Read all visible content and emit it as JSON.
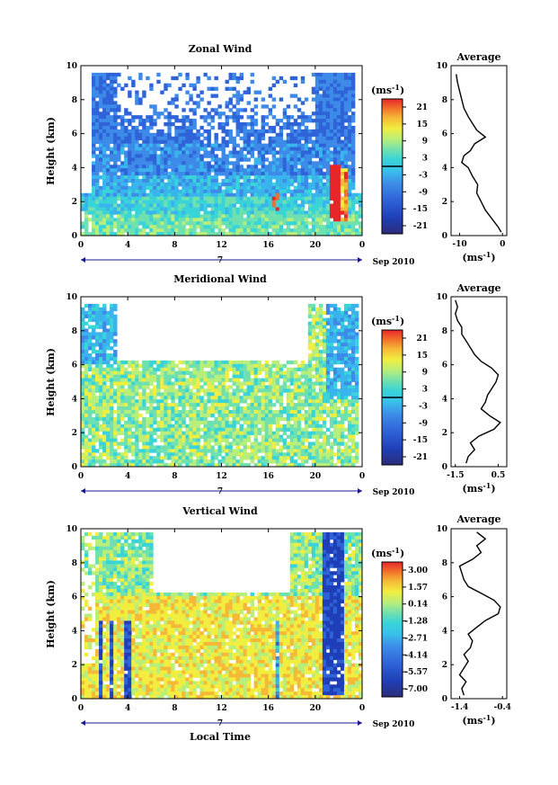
{
  "chart_data": [
    {
      "type": "heatmap",
      "title": "Zonal Wind",
      "xlabel": "",
      "ylabel": "Height (km)",
      "date_label": "Sep 2010",
      "day_label": "7",
      "x_ticks": [
        "0",
        "4",
        "8",
        "12",
        "16",
        "20",
        "0"
      ],
      "y_ticks": [
        "0",
        "2",
        "4",
        "6",
        "8",
        "10"
      ],
      "xlim": [
        0,
        24
      ],
      "ylim": [
        0,
        10
      ],
      "colorbar": {
        "unit": "(ms",
        "unit_exp": "-1",
        "unit_close": ")",
        "tick_labels": [
          "21",
          "15",
          "9",
          "3",
          "-3",
          "-9",
          "-15",
          "-21"
        ],
        "highlight_level": "0"
      },
      "profile": {
        "title": "Average",
        "xlabel": "(ms",
        "xlabel_exp": "-1",
        "xlabel_close": ")",
        "x_ticks": [
          "-10",
          "0"
        ],
        "y_ticks": [
          "0",
          "2",
          "4",
          "6",
          "8",
          "10"
        ],
        "xlim": [
          -12,
          1
        ],
        "height": [
          0.2,
          0.5,
          1.0,
          1.5,
          2.0,
          2.5,
          3.0,
          3.5,
          4.0,
          4.3,
          4.7,
          5.0,
          5.4,
          5.8,
          6.2,
          6.6,
          7.0,
          7.5,
          8.0,
          8.5,
          9.0,
          9.5
        ],
        "values": [
          -0.3,
          -1.0,
          -2.5,
          -4.0,
          -5.0,
          -6.0,
          -5.8,
          -7.0,
          -8.0,
          -9.5,
          -9.0,
          -7.5,
          -6.5,
          -4.0,
          -6.0,
          -7.0,
          -8.0,
          -9.0,
          -9.5,
          -10.0,
          -10.5,
          -10.8
        ]
      }
    },
    {
      "type": "heatmap",
      "title": "Meridional Wind",
      "xlabel": "",
      "ylabel": "Height (km)",
      "date_label": "Sep 2010",
      "day_label": "7",
      "x_ticks": [
        "0",
        "4",
        "8",
        "12",
        "16",
        "20",
        "0"
      ],
      "y_ticks": [
        "0",
        "2",
        "4",
        "6",
        "8",
        "10"
      ],
      "xlim": [
        0,
        24
      ],
      "ylim": [
        0,
        10
      ],
      "colorbar": {
        "unit": "(ms",
        "unit_exp": "-1",
        "unit_close": ")",
        "tick_labels": [
          "21",
          "15",
          "9",
          "3",
          "-3",
          "-9",
          "-15",
          "-21"
        ],
        "highlight_level": "0"
      },
      "profile": {
        "title": "Average",
        "xlabel": "(ms",
        "xlabel_exp": "-1",
        "xlabel_close": ")",
        "x_ticks": [
          "-1.5",
          "0.5"
        ],
        "y_ticks": [
          "0",
          "2",
          "4",
          "6",
          "8",
          "10"
        ],
        "xlim": [
          -1.7,
          0.9
        ],
        "height": [
          0.2,
          0.6,
          1.0,
          1.4,
          1.8,
          2.2,
          2.6,
          3.0,
          3.4,
          3.8,
          4.2,
          4.6,
          5.0,
          5.4,
          5.8,
          6.2,
          6.6,
          7.0,
          7.4,
          7.8,
          8.2,
          8.6,
          9.0,
          9.4,
          9.8
        ],
        "values": [
          -1.0,
          -0.9,
          -0.6,
          -0.8,
          -0.4,
          0.3,
          0.6,
          0.1,
          -0.3,
          -0.1,
          0.0,
          0.2,
          0.4,
          0.5,
          0.2,
          -0.3,
          -0.6,
          -0.8,
          -1.0,
          -1.2,
          -1.2,
          -1.4,
          -1.5,
          -1.4,
          -1.5
        ]
      }
    },
    {
      "type": "heatmap",
      "title": "Vertical Wind",
      "xlabel": "Local Time",
      "ylabel": "Height (km)",
      "date_label": "Sep 2010",
      "day_label": "7",
      "x_ticks": [
        "0",
        "4",
        "8",
        "12",
        "16",
        "20",
        "0"
      ],
      "y_ticks": [
        "0",
        "2",
        "4",
        "6",
        "8",
        "10"
      ],
      "xlim": [
        0,
        24
      ],
      "ylim": [
        0,
        10
      ],
      "colorbar": {
        "unit": "(ms",
        "unit_exp": "-1",
        "unit_close": ")",
        "tick_labels": [
          "3.00",
          "1.57",
          "0.14",
          "-1.28",
          "-2.71",
          "-4.14",
          "-5.57",
          "-7.00"
        ],
        "highlight_level": ""
      },
      "profile": {
        "title": "Average",
        "xlabel": "(ms",
        "xlabel_exp": "-1",
        "xlabel_close": ")",
        "x_ticks": [
          "-1.4",
          "-0.4"
        ],
        "y_ticks": [
          "0",
          "2",
          "4",
          "6",
          "8",
          "10"
        ],
        "xlim": [
          -1.6,
          -0.3
        ],
        "height": [
          0.2,
          0.6,
          1.0,
          1.4,
          1.8,
          2.2,
          2.6,
          3.0,
          3.4,
          3.8,
          4.2,
          4.6,
          5.0,
          5.4,
          5.8,
          6.2,
          6.6,
          7.0,
          7.4,
          7.8,
          8.2,
          8.6,
          9.0,
          9.4,
          9.8
        ],
        "values": [
          -1.3,
          -1.35,
          -1.25,
          -1.4,
          -1.3,
          -1.2,
          -1.3,
          -1.15,
          -1.1,
          -1.2,
          -1.0,
          -0.8,
          -0.5,
          -0.45,
          -0.6,
          -0.9,
          -1.2,
          -1.3,
          -1.35,
          -1.4,
          -1.1,
          -0.9,
          -1.0,
          -0.8,
          -1.0
        ]
      }
    }
  ],
  "colors": {
    "scale": [
      "#2b2d7a",
      "#1f3fb8",
      "#2f63d8",
      "#3d8ae8",
      "#39b4ec",
      "#39d4d8",
      "#6fe0b0",
      "#b8ee7a",
      "#f1ee40",
      "#f6b836",
      "#f2702a",
      "#e8262a"
    ],
    "axis": "#000000",
    "time_bar": "#1a1a8c"
  }
}
